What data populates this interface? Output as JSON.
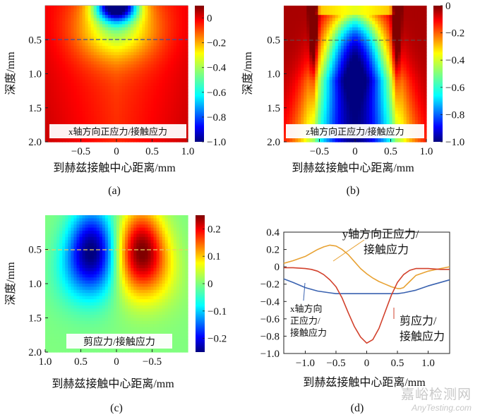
{
  "panels": {
    "a": {
      "type": "heatmap",
      "caption": "(a)",
      "annotation": "x轴方向正应力/接触应力",
      "xlabel": "到赫兹接触中心距离/mm",
      "ylabel": "深度/mm",
      "xlim": [
        -1.0,
        1.0
      ],
      "ylim": [
        0.0,
        2.0
      ],
      "xticks": [
        -0.5,
        0,
        0.5,
        1.0
      ],
      "xticklabels": [
        "−0.5",
        "0",
        "0.5",
        "1.0"
      ],
      "yticks": [
        0.5,
        1.0,
        1.5,
        2.0
      ],
      "yticklabels": [
        "0.5",
        "1.0",
        "1.5",
        "2.0"
      ],
      "colorbar": {
        "range": [
          -1.0,
          0.1
        ],
        "ticks": [
          0,
          -0.2,
          -0.4,
          -0.6,
          -0.8,
          -1.0
        ],
        "ticklabels": [
          "0",
          "−0.2",
          "−0.4",
          "−0.6",
          "−0.8",
          "−1.0"
        ]
      },
      "dashed_depth": 0.5
    },
    "b": {
      "type": "heatmap",
      "caption": "(b)",
      "annotation": "z轴方向正应力/接触应力",
      "xlabel": "到赫兹接触中心距离/mm",
      "ylabel": "深度/mm",
      "xlim": [
        -1.0,
        1.0
      ],
      "ylim": [
        0.0,
        2.0
      ],
      "xticks": [
        -0.5,
        0,
        0.5,
        1.0
      ],
      "xticklabels": [
        "−0.5",
        "0",
        "0.5",
        "1.0"
      ],
      "yticks": [
        0.5,
        1.0,
        1.5,
        2.0
      ],
      "yticklabels": [
        "0.5",
        "1.0",
        "1.5",
        "2.0"
      ],
      "colorbar": {
        "range": [
          -1.0,
          0.0
        ],
        "ticks": [
          0,
          -0.2,
          -0.4,
          -0.6,
          -0.8,
          -1.0
        ],
        "ticklabels": [
          "0",
          "−0.2",
          "−0.4",
          "−0.6",
          "−0.8",
          "−1.0"
        ]
      },
      "dashed_depth": 0.5
    },
    "c": {
      "type": "heatmap",
      "caption": "(c)",
      "annotation": "剪应力/接触应力",
      "xlabel": "到赫兹接触中心距离/mm",
      "ylabel": "深度/mm",
      "xlim": [
        1.0,
        -1.0
      ],
      "ylim": [
        0.0,
        2.0
      ],
      "xticks": [
        1.0,
        0.5,
        0,
        -0.5
      ],
      "xticklabels": [
        "1.0",
        "0.5",
        "0",
        "−0.5"
      ],
      "yticks": [
        0.5,
        1.0,
        1.5,
        2.0
      ],
      "yticklabels": [
        "0.5",
        "1.0",
        "1.5",
        "2.0"
      ],
      "colorbar": {
        "range": [
          -0.25,
          0.25
        ],
        "ticks": [
          0.2,
          0.1,
          0,
          -0.1,
          -0.2
        ],
        "ticklabels": [
          "0.2",
          "0.1",
          "0",
          "−0.1",
          "−0.2"
        ]
      },
      "dashed_depth": 0.5
    },
    "d": {
      "type": "line",
      "caption": "(d)",
      "xlabel": "到赫兹接触中心距离/mm",
      "xlim": [
        -1.35,
        1.35
      ],
      "ylim": [
        -1.0,
        0.4
      ],
      "xticks": [
        -1.0,
        -0.5,
        0,
        0.5,
        1.0
      ],
      "xticklabels": [
        "−1.0",
        "−0.5",
        "0",
        "0.5",
        "1.0"
      ],
      "yticks": [
        0.4,
        0.2,
        0,
        -0.2,
        -0.4,
        -0.6,
        -0.8,
        -1.0
      ],
      "yticklabels": [
        "0.4",
        "0.2",
        "0",
        "−0.2",
        "−0.4",
        "−0.6",
        "−0.8",
        "−1.0"
      ],
      "series": [
        {
          "name": "y轴方向正应力/接触应力",
          "color": "#e8a233",
          "x": [
            -1.35,
            -1.2,
            -1.0,
            -0.8,
            -0.7,
            -0.6,
            -0.5,
            -0.4,
            -0.3,
            -0.2,
            -0.1,
            0.0,
            0.1,
            0.2,
            0.3,
            0.4,
            0.5,
            0.55,
            0.6,
            0.7,
            0.8,
            1.0,
            1.2,
            1.35
          ],
          "y": [
            0.04,
            0.07,
            0.12,
            0.2,
            0.23,
            0.25,
            0.24,
            0.2,
            0.14,
            0.06,
            -0.02,
            -0.08,
            -0.13,
            -0.17,
            -0.2,
            -0.23,
            -0.25,
            -0.25,
            -0.24,
            -0.17,
            -0.1,
            -0.05,
            -0.02,
            0.0
          ]
        },
        {
          "name": "x轴方向正应力/接触应力",
          "color": "#3a62b0",
          "x": [
            -1.35,
            -1.2,
            -1.0,
            -0.8,
            -0.6,
            -0.5,
            -0.4,
            -0.2,
            0.0,
            0.2,
            0.4,
            0.5,
            0.6,
            0.8,
            1.0,
            1.2,
            1.35
          ],
          "y": [
            -0.14,
            -0.18,
            -0.24,
            -0.28,
            -0.3,
            -0.31,
            -0.31,
            -0.31,
            -0.31,
            -0.31,
            -0.31,
            -0.31,
            -0.3,
            -0.27,
            -0.22,
            -0.18,
            -0.15
          ]
        },
        {
          "name": "剪应力/接触应力",
          "color": "#d2412c",
          "x": [
            -1.35,
            -1.2,
            -1.0,
            -0.9,
            -0.8,
            -0.7,
            -0.6,
            -0.5,
            -0.4,
            -0.3,
            -0.2,
            -0.1,
            0.0,
            0.1,
            0.2,
            0.3,
            0.4,
            0.5,
            0.6,
            0.7,
            0.8,
            0.9,
            1.0,
            1.2,
            1.35
          ],
          "y": [
            -0.01,
            -0.01,
            -0.02,
            -0.03,
            -0.05,
            -0.09,
            -0.15,
            -0.23,
            -0.36,
            -0.53,
            -0.69,
            -0.81,
            -0.88,
            -0.84,
            -0.71,
            -0.52,
            -0.33,
            -0.18,
            -0.09,
            -0.04,
            -0.02,
            -0.02,
            -0.02,
            -0.03,
            -0.03
          ]
        }
      ],
      "labels": [
        {
          "text": "y轴方向正应力/",
          "series": 0
        },
        {
          "text": "接触应力",
          "series": 0
        },
        {
          "text": "x轴方向",
          "series": 1
        },
        {
          "text": "正应力/",
          "series": 1
        },
        {
          "text": "接触应力",
          "series": 1
        },
        {
          "text": "剪应力/",
          "series": 2
        },
        {
          "text": "接触应力",
          "series": 2
        }
      ]
    }
  },
  "watermark": {
    "title": "嘉峪检测网",
    "url": "AnyTesting.com"
  }
}
